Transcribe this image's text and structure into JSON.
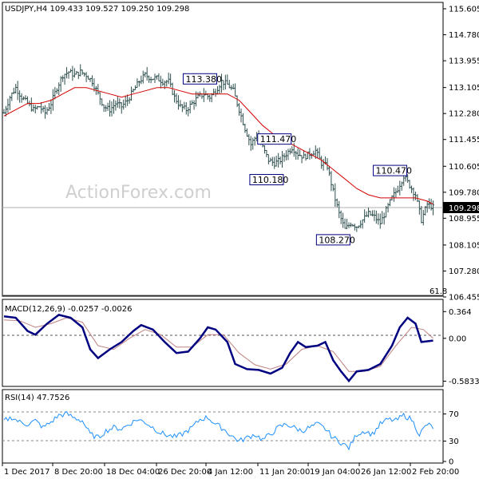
{
  "header": {
    "main": "USDJPY,H4  109.433 109.527 109.250 109.298",
    "macd": "MACD(12,26,9) -0.0257 -0.0026",
    "rsi": "RSI(14) 47.7526"
  },
  "watermark": "ActionForex.com",
  "fib_label": "61.8",
  "current_price_label": "109.298",
  "colors": {
    "price_bars": "#2f4f4f",
    "moving_average": "#d40000",
    "macd_line": "#000080",
    "macd_signal": "#c08080",
    "rsi_line": "#1e90ff",
    "border": "#000000"
  },
  "chart_data": [
    {
      "type": "ohlc",
      "symbol": "USDJPY",
      "timeframe": "H4",
      "ohlc_last": {
        "open": 109.433,
        "high": 109.527,
        "low": 109.25,
        "close": 109.298
      },
      "y_ticks": [
        "115.605",
        "114.780",
        "113.955",
        "113.105",
        "112.280",
        "111.455",
        "110.605",
        "109.780",
        "108.955",
        "108.105",
        "107.280",
        "106.455"
      ],
      "ylim": [
        106.455,
        115.605
      ],
      "x_ticks": [
        "1 Dec 2017",
        "8 Dec 20:00",
        "18 Dec 04:00",
        "26 Dec 20:00",
        "4 Jan 12:00",
        "11 Jan 20:00",
        "19 Jan 04:00",
        "26 Jan 12:00",
        "2 Feb 20:00"
      ],
      "close_path": [
        [
          0,
          112.3
        ],
        [
          3,
          112.8
        ],
        [
          6,
          113.1
        ],
        [
          9,
          112.8
        ],
        [
          12,
          112.6
        ],
        [
          15,
          112.4
        ],
        [
          18,
          112.5
        ],
        [
          21,
          112.3
        ],
        [
          24,
          112.6
        ],
        [
          27,
          113.1
        ],
        [
          30,
          113.5
        ],
        [
          33,
          113.6
        ],
        [
          36,
          113.5
        ],
        [
          39,
          113.6
        ],
        [
          42,
          113.5
        ],
        [
          45,
          113.3
        ],
        [
          48,
          112.9
        ],
        [
          51,
          112.5
        ],
        [
          54,
          112.4
        ],
        [
          57,
          112.6
        ],
        [
          60,
          112.5
        ],
        [
          63,
          112.7
        ],
        [
          66,
          113.0
        ],
        [
          69,
          113.3
        ],
        [
          72,
          113.5
        ],
        [
          75,
          113.4
        ],
        [
          78,
          113.4
        ],
        [
          81,
          113.3
        ],
        [
          84,
          113.3
        ],
        [
          87,
          112.8
        ],
        [
          90,
          112.5
        ],
        [
          93,
          112.4
        ],
        [
          96,
          112.6
        ],
        [
          99,
          112.8
        ],
        [
          102,
          112.9
        ],
        [
          105,
          112.8
        ],
        [
          108,
          113.0
        ],
        [
          111,
          113.3
        ],
        [
          114,
          113.2
        ],
        [
          117,
          113.0
        ],
        [
          120,
          112.4
        ],
        [
          123,
          111.8
        ],
        [
          126,
          111.3
        ],
        [
          129,
          111.6
        ],
        [
          132,
          111.2
        ],
        [
          135,
          110.8
        ],
        [
          138,
          110.7
        ],
        [
          141,
          110.8
        ],
        [
          144,
          111.0
        ],
        [
          147,
          111.2
        ],
        [
          150,
          111.0
        ],
        [
          153,
          110.9
        ],
        [
          156,
          111.0
        ],
        [
          159,
          111.1
        ],
        [
          162,
          110.7
        ],
        [
          165,
          110.6
        ],
        [
          168,
          109.8
        ],
        [
          171,
          109.1
        ],
        [
          174,
          108.6
        ],
        [
          177,
          108.8
        ],
        [
          180,
          108.7
        ],
        [
          183,
          108.9
        ],
        [
          186,
          109.1
        ],
        [
          189,
          109.0
        ],
        [
          192,
          108.8
        ],
        [
          195,
          109.2
        ],
        [
          198,
          109.6
        ],
        [
          201,
          109.9
        ],
        [
          204,
          110.3
        ],
        [
          207,
          110.0
        ],
        [
          210,
          109.7
        ],
        [
          213,
          108.9
        ],
        [
          216,
          109.4
        ],
        [
          219,
          109.3
        ]
      ],
      "ma_path": [
        [
          0,
          112.2
        ],
        [
          6,
          112.4
        ],
        [
          12,
          112.6
        ],
        [
          18,
          112.6
        ],
        [
          24,
          112.7
        ],
        [
          30,
          112.9
        ],
        [
          36,
          113.1
        ],
        [
          42,
          113.1
        ],
        [
          48,
          113.0
        ],
        [
          54,
          112.9
        ],
        [
          60,
          112.8
        ],
        [
          66,
          112.9
        ],
        [
          72,
          113.0
        ],
        [
          78,
          113.1
        ],
        [
          84,
          113.1
        ],
        [
          90,
          113.0
        ],
        [
          96,
          112.9
        ],
        [
          102,
          112.9
        ],
        [
          108,
          112.9
        ],
        [
          114,
          112.9
        ],
        [
          120,
          112.7
        ],
        [
          126,
          112.3
        ],
        [
          132,
          111.9
        ],
        [
          138,
          111.6
        ],
        [
          144,
          111.4
        ],
        [
          150,
          111.2
        ],
        [
          156,
          111.0
        ],
        [
          162,
          110.8
        ],
        [
          168,
          110.5
        ],
        [
          174,
          110.2
        ],
        [
          180,
          109.9
        ],
        [
          186,
          109.7
        ],
        [
          192,
          109.6
        ],
        [
          198,
          109.6
        ],
        [
          204,
          109.6
        ],
        [
          210,
          109.6
        ],
        [
          216,
          109.5
        ],
        [
          219,
          109.4
        ]
      ],
      "annotations": [
        {
          "text": "113.380",
          "t": 100,
          "value": 113.38
        },
        {
          "text": "111.470",
          "t": 138,
          "value": 111.47
        },
        {
          "text": "110.180",
          "t": 134,
          "value": 110.18
        },
        {
          "text": "110.470",
          "t": 197,
          "value": 110.47
        },
        {
          "text": "108.270",
          "t": 168,
          "value": 108.27
        }
      ]
    },
    {
      "type": "line",
      "title": "MACD(12,26,9)",
      "y_ticks": [
        "0.364",
        "0.00",
        "-0.5833"
      ],
      "ylim": [
        -0.6,
        0.4
      ],
      "macd_path": [
        [
          0,
          0.3
        ],
        [
          6,
          0.28
        ],
        [
          12,
          0.1
        ],
        [
          16,
          0.05
        ],
        [
          22,
          0.2
        ],
        [
          28,
          0.32
        ],
        [
          34,
          0.28
        ],
        [
          40,
          0.15
        ],
        [
          44,
          -0.15
        ],
        [
          48,
          -0.27
        ],
        [
          54,
          -0.15
        ],
        [
          60,
          -0.05
        ],
        [
          66,
          0.1
        ],
        [
          70,
          0.18
        ],
        [
          76,
          0.12
        ],
        [
          82,
          -0.05
        ],
        [
          88,
          -0.2
        ],
        [
          94,
          -0.18
        ],
        [
          100,
          0.0
        ],
        [
          104,
          0.15
        ],
        [
          108,
          0.12
        ],
        [
          114,
          -0.05
        ],
        [
          118,
          -0.35
        ],
        [
          124,
          -0.42
        ],
        [
          130,
          -0.43
        ],
        [
          136,
          -0.48
        ],
        [
          142,
          -0.4
        ],
        [
          146,
          -0.2
        ],
        [
          150,
          -0.05
        ],
        [
          154,
          -0.12
        ],
        [
          160,
          -0.1
        ],
        [
          164,
          -0.05
        ],
        [
          168,
          -0.3
        ],
        [
          172,
          -0.45
        ],
        [
          176,
          -0.58
        ],
        [
          180,
          -0.45
        ],
        [
          186,
          -0.43
        ],
        [
          192,
          -0.35
        ],
        [
          198,
          -0.1
        ],
        [
          202,
          0.15
        ],
        [
          206,
          0.28
        ],
        [
          210,
          0.2
        ],
        [
          213,
          -0.05
        ],
        [
          219,
          -0.03
        ]
      ],
      "signal_path": [
        [
          0,
          0.25
        ],
        [
          8,
          0.24
        ],
        [
          16,
          0.15
        ],
        [
          24,
          0.2
        ],
        [
          32,
          0.28
        ],
        [
          40,
          0.22
        ],
        [
          48,
          -0.1
        ],
        [
          56,
          -0.15
        ],
        [
          64,
          0.0
        ],
        [
          72,
          0.12
        ],
        [
          80,
          0.05
        ],
        [
          88,
          -0.12
        ],
        [
          96,
          -0.12
        ],
        [
          104,
          0.05
        ],
        [
          112,
          0.05
        ],
        [
          120,
          -0.2
        ],
        [
          128,
          -0.36
        ],
        [
          136,
          -0.42
        ],
        [
          144,
          -0.35
        ],
        [
          152,
          -0.15
        ],
        [
          160,
          -0.1
        ],
        [
          168,
          -0.18
        ],
        [
          176,
          -0.45
        ],
        [
          184,
          -0.45
        ],
        [
          192,
          -0.38
        ],
        [
          200,
          -0.1
        ],
        [
          208,
          0.15
        ],
        [
          214,
          0.12
        ],
        [
          219,
          0.0
        ]
      ]
    },
    {
      "type": "line",
      "title": "RSI(14)",
      "y_ticks": [
        "70",
        "30",
        "0"
      ],
      "ylim": [
        0,
        100
      ],
      "rsi_path": [
        [
          0,
          60
        ],
        [
          4,
          65
        ],
        [
          8,
          58
        ],
        [
          12,
          55
        ],
        [
          16,
          60
        ],
        [
          20,
          50
        ],
        [
          24,
          58
        ],
        [
          28,
          68
        ],
        [
          32,
          70
        ],
        [
          36,
          64
        ],
        [
          40,
          60
        ],
        [
          44,
          40
        ],
        [
          48,
          35
        ],
        [
          52,
          45
        ],
        [
          56,
          50
        ],
        [
          60,
          48
        ],
        [
          64,
          55
        ],
        [
          68,
          62
        ],
        [
          72,
          58
        ],
        [
          76,
          50
        ],
        [
          80,
          42
        ],
        [
          84,
          38
        ],
        [
          88,
          36
        ],
        [
          92,
          42
        ],
        [
          96,
          50
        ],
        [
          100,
          62
        ],
        [
          104,
          65
        ],
        [
          108,
          55
        ],
        [
          112,
          48
        ],
        [
          116,
          38
        ],
        [
          120,
          30
        ],
        [
          124,
          35
        ],
        [
          128,
          40
        ],
        [
          132,
          32
        ],
        [
          136,
          40
        ],
        [
          140,
          50
        ],
        [
          144,
          55
        ],
        [
          148,
          50
        ],
        [
          152,
          45
        ],
        [
          156,
          50
        ],
        [
          160,
          55
        ],
        [
          164,
          48
        ],
        [
          168,
          35
        ],
        [
          172,
          28
        ],
        [
          176,
          20
        ],
        [
          180,
          40
        ],
        [
          184,
          45
        ],
        [
          188,
          40
        ],
        [
          192,
          55
        ],
        [
          196,
          62
        ],
        [
          200,
          60
        ],
        [
          204,
          68
        ],
        [
          208,
          62
        ],
        [
          212,
          40
        ],
        [
          216,
          55
        ],
        [
          219,
          50
        ]
      ]
    }
  ]
}
